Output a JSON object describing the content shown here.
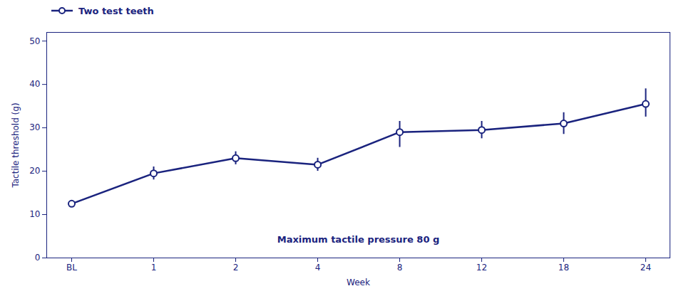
{
  "chart_data": {
    "type": "line",
    "xlabel": "Week",
    "ylabel": "Tactile threshold (g)",
    "categories": [
      "BL",
      "1",
      "2",
      "4",
      "8",
      "12",
      "18",
      "24"
    ],
    "series": [
      {
        "name": "Two test teeth",
        "color": "#1a237e",
        "marker": "circle",
        "line_style": "solid",
        "values": [
          12.5,
          19.5,
          23.0,
          21.5,
          29.0,
          29.5,
          31.0,
          35.5
        ],
        "error_lower": [
          0.5,
          1.5,
          1.5,
          1.5,
          3.5,
          2.0,
          2.5,
          3.0
        ],
        "error_upper": [
          0.5,
          1.5,
          1.5,
          1.5,
          2.5,
          2.0,
          2.5,
          3.5
        ]
      }
    ],
    "annotations": [
      {
        "text": "Maximum tactile pressure 80 g",
        "color": "#1a237e"
      }
    ],
    "ylim": [
      0,
      52
    ],
    "yticks": [
      0,
      10,
      20,
      30,
      40,
      50
    ],
    "grid": false,
    "legend": "top"
  }
}
